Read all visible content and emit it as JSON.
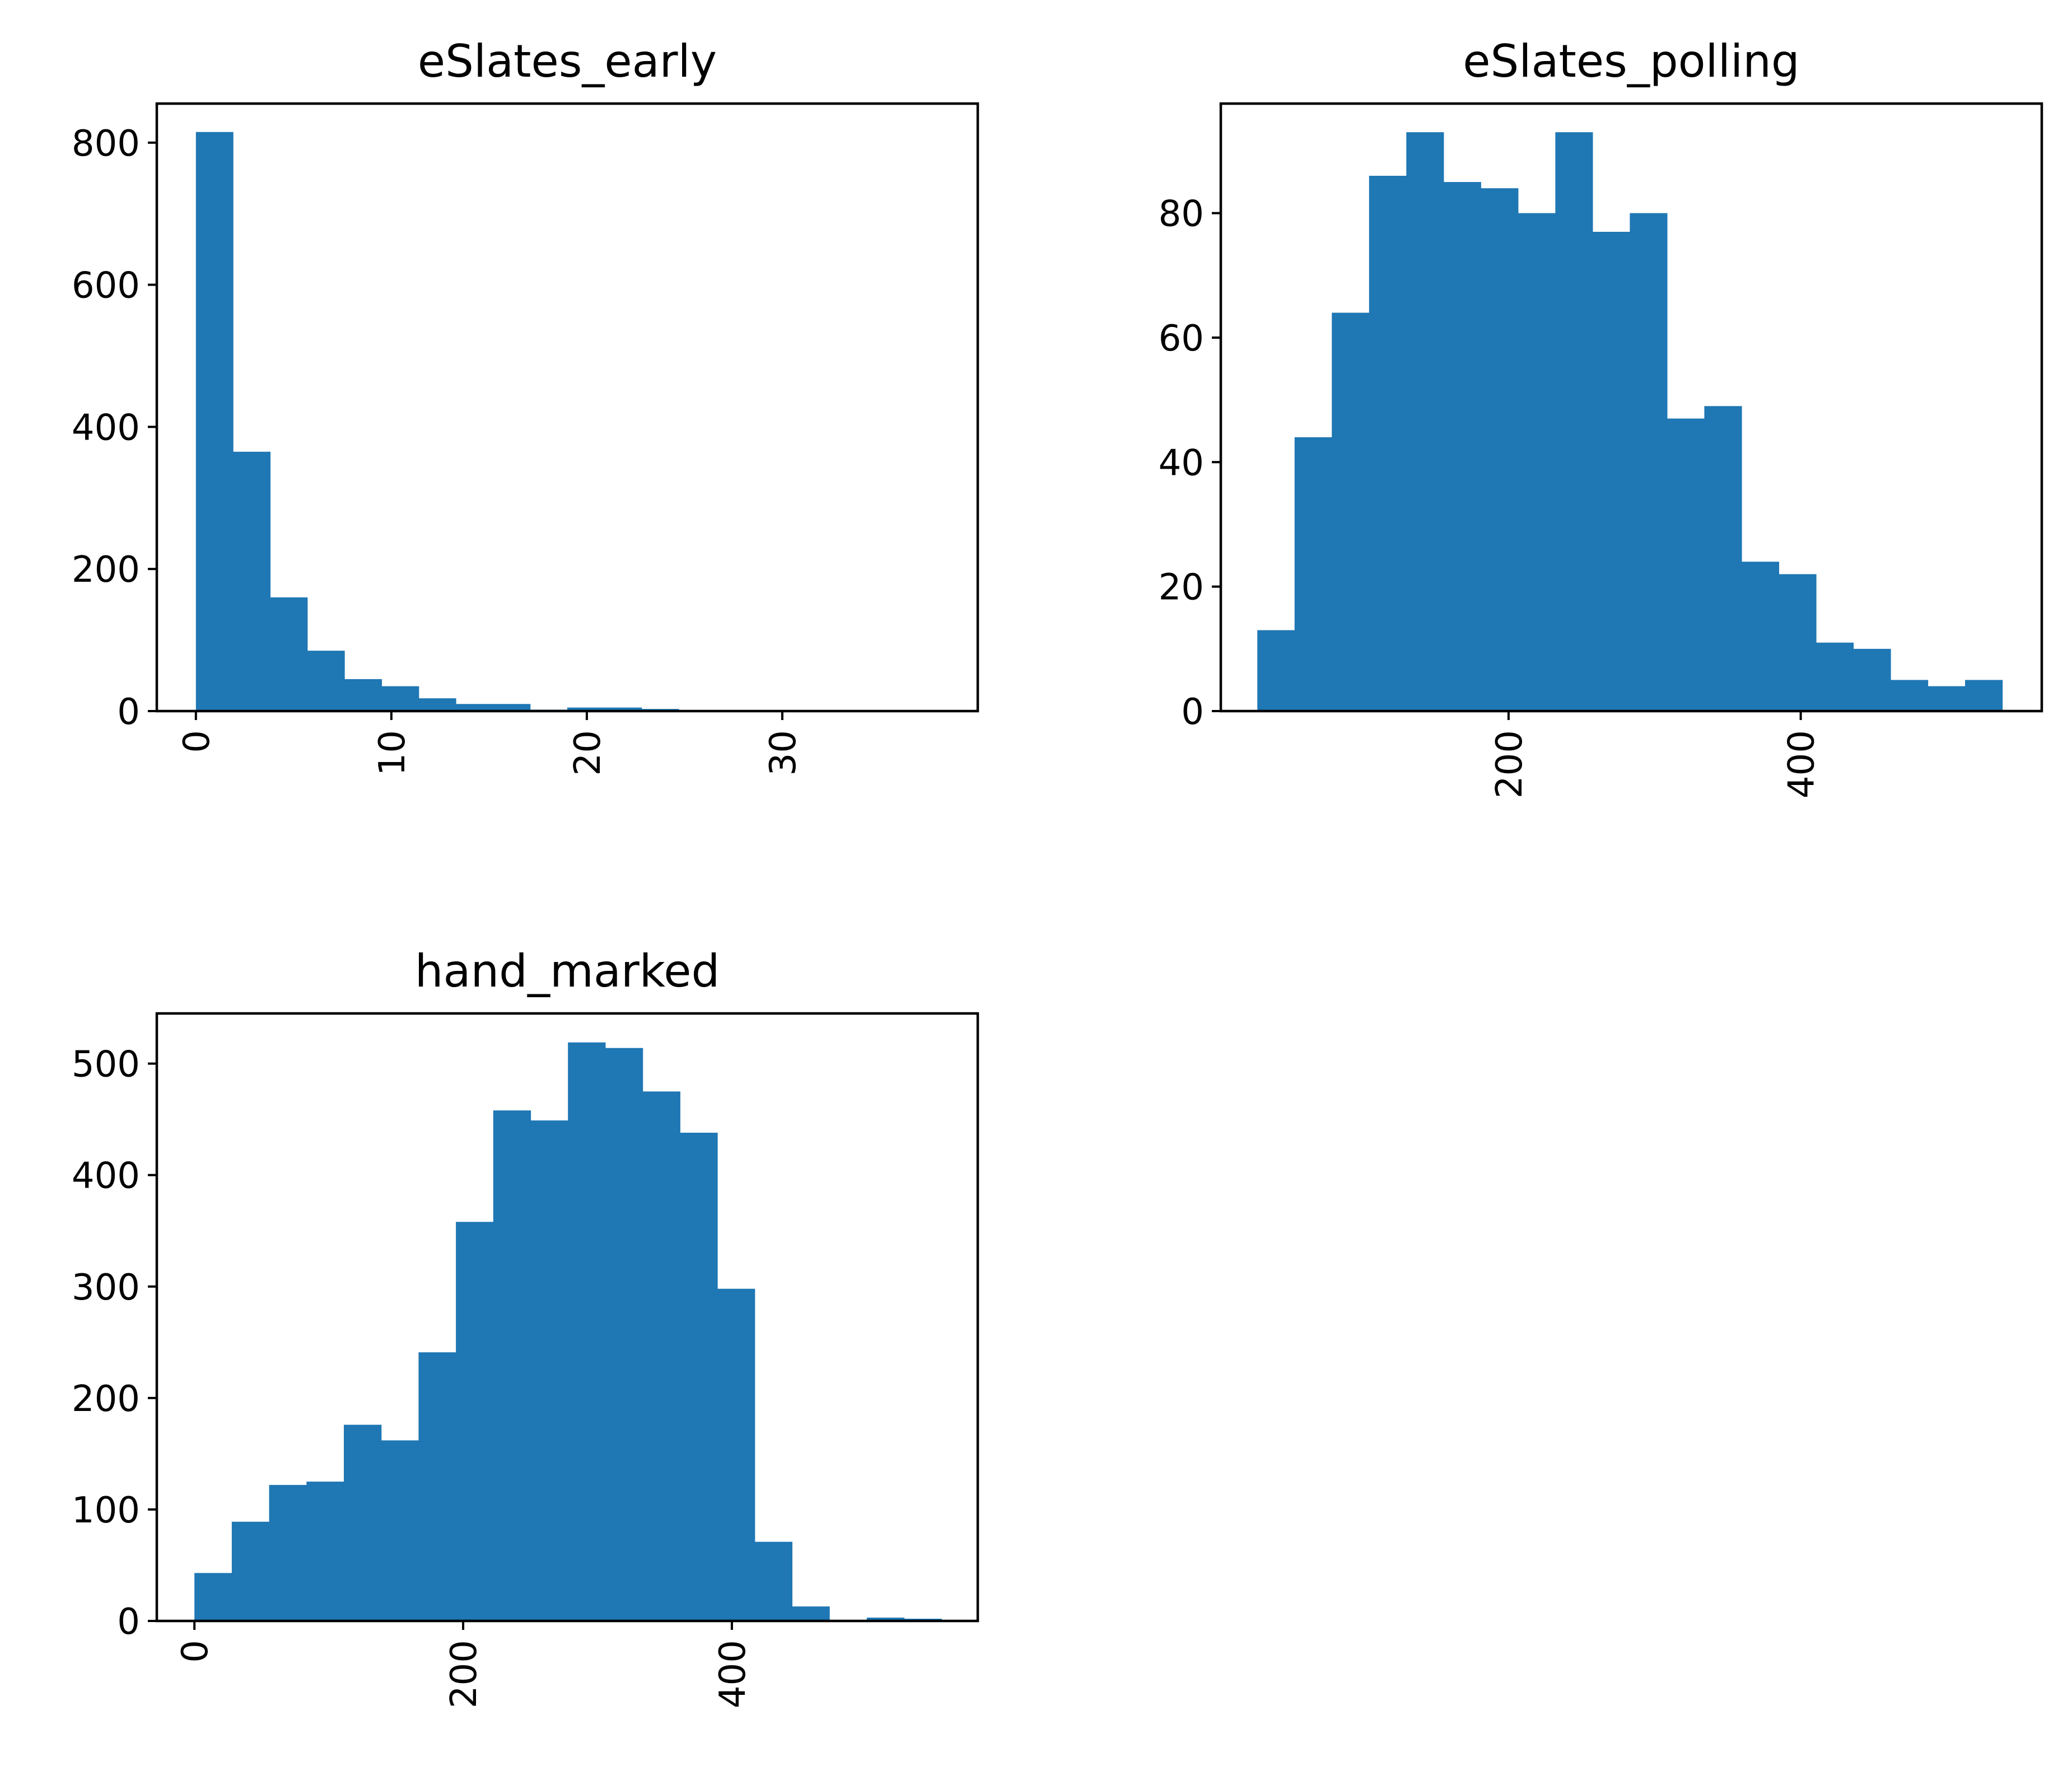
{
  "chart_data": [
    {
      "type": "histogram",
      "title": "eSlates_early",
      "xlabel": "",
      "ylabel": "",
      "xlim": [
        -2,
        40
      ],
      "ylim": [
        0,
        855
      ],
      "grid": false,
      "bar_color": "#1f77b4",
      "bins": [
        {
          "x0": 0,
          "x1": 1.9,
          "count": 815
        },
        {
          "x0": 1.9,
          "x1": 3.8,
          "count": 365
        },
        {
          "x0": 3.8,
          "x1": 5.7,
          "count": 160
        },
        {
          "x0": 5.7,
          "x1": 7.6,
          "count": 85
        },
        {
          "x0": 7.6,
          "x1": 9.5,
          "count": 45
        },
        {
          "x0": 9.5,
          "x1": 11.4,
          "count": 35
        },
        {
          "x0": 11.4,
          "x1": 13.3,
          "count": 18
        },
        {
          "x0": 13.3,
          "x1": 15.2,
          "count": 10
        },
        {
          "x0": 15.2,
          "x1": 17.1,
          "count": 10
        },
        {
          "x0": 17.1,
          "x1": 19.0,
          "count": 2
        },
        {
          "x0": 19.0,
          "x1": 20.9,
          "count": 5
        },
        {
          "x0": 20.9,
          "x1": 22.8,
          "count": 5
        },
        {
          "x0": 22.8,
          "x1": 24.7,
          "count": 3
        },
        {
          "x0": 24.7,
          "x1": 26.6,
          "count": 1
        },
        {
          "x0": 26.6,
          "x1": 28.5,
          "count": 1
        },
        {
          "x0": 28.5,
          "x1": 30.4,
          "count": 0
        },
        {
          "x0": 30.4,
          "x1": 32.3,
          "count": 0
        },
        {
          "x0": 32.3,
          "x1": 34.2,
          "count": 0
        },
        {
          "x0": 34.2,
          "x1": 36.1,
          "count": 0
        },
        {
          "x0": 36.1,
          "x1": 38.0,
          "count": 1
        }
      ],
      "xticks": [
        0,
        10,
        20,
        30
      ],
      "xtick_labels": [
        "0",
        "10",
        "20",
        "30"
      ],
      "yticks": [
        0,
        200,
        400,
        600,
        800
      ],
      "ytick_labels": [
        "0",
        "200",
        "400",
        "600",
        "800"
      ]
    },
    {
      "type": "histogram",
      "title": "eSlates_polling",
      "xlabel": "",
      "ylabel": "",
      "xlim": [
        3,
        565
      ],
      "ylim": [
        0,
        97.6
      ],
      "grid": false,
      "bar_color": "#1f77b4",
      "bins": [
        {
          "x0": 28,
          "x1": 53.5,
          "count": 13
        },
        {
          "x0": 53.5,
          "x1": 79,
          "count": 44
        },
        {
          "x0": 79,
          "x1": 104.5,
          "count": 64
        },
        {
          "x0": 104.5,
          "x1": 130,
          "count": 86
        },
        {
          "x0": 130,
          "x1": 155.5,
          "count": 93
        },
        {
          "x0": 155.5,
          "x1": 181,
          "count": 85
        },
        {
          "x0": 181,
          "x1": 206.5,
          "count": 84
        },
        {
          "x0": 206.5,
          "x1": 232,
          "count": 80
        },
        {
          "x0": 232,
          "x1": 257.5,
          "count": 93
        },
        {
          "x0": 257.5,
          "x1": 283,
          "count": 77
        },
        {
          "x0": 283,
          "x1": 308.5,
          "count": 80
        },
        {
          "x0": 308.5,
          "x1": 334,
          "count": 47
        },
        {
          "x0": 334,
          "x1": 359.5,
          "count": 49
        },
        {
          "x0": 359.5,
          "x1": 385,
          "count": 24
        },
        {
          "x0": 385,
          "x1": 410.5,
          "count": 22
        },
        {
          "x0": 410.5,
          "x1": 436,
          "count": 11
        },
        {
          "x0": 436,
          "x1": 461.5,
          "count": 10
        },
        {
          "x0": 461.5,
          "x1": 487,
          "count": 5
        },
        {
          "x0": 487,
          "x1": 512.5,
          "count": 4
        },
        {
          "x0": 512.5,
          "x1": 538,
          "count": 5
        }
      ],
      "xticks": [
        200,
        400
      ],
      "xtick_labels": [
        "200",
        "400"
      ],
      "yticks": [
        0,
        20,
        40,
        60,
        80
      ],
      "ytick_labels": [
        "0",
        "20",
        "40",
        "60",
        "80"
      ]
    },
    {
      "type": "histogram",
      "title": "hand_marked",
      "xlabel": "",
      "ylabel": "",
      "xlim": [
        -28,
        583
      ],
      "ylim": [
        0,
        545
      ],
      "grid": false,
      "bar_color": "#1f77b4",
      "bins": [
        {
          "x0": 0,
          "x1": 27.8,
          "count": 43
        },
        {
          "x0": 27.8,
          "x1": 55.6,
          "count": 89
        },
        {
          "x0": 55.6,
          "x1": 83.4,
          "count": 122
        },
        {
          "x0": 83.4,
          "x1": 111.2,
          "count": 125
        },
        {
          "x0": 111.2,
          "x1": 139,
          "count": 176
        },
        {
          "x0": 139,
          "x1": 166.8,
          "count": 162
        },
        {
          "x0": 166.8,
          "x1": 194.6,
          "count": 241
        },
        {
          "x0": 194.6,
          "x1": 222.4,
          "count": 358
        },
        {
          "x0": 222.4,
          "x1": 250.2,
          "count": 458
        },
        {
          "x0": 250.2,
          "x1": 278,
          "count": 449
        },
        {
          "x0": 278,
          "x1": 305.8,
          "count": 519
        },
        {
          "x0": 305.8,
          "x1": 333.6,
          "count": 514
        },
        {
          "x0": 333.6,
          "x1": 361.4,
          "count": 475
        },
        {
          "x0": 361.4,
          "x1": 389.2,
          "count": 438
        },
        {
          "x0": 389.2,
          "x1": 417,
          "count": 298
        },
        {
          "x0": 417,
          "x1": 444.8,
          "count": 71
        },
        {
          "x0": 444.8,
          "x1": 472.6,
          "count": 13
        },
        {
          "x0": 472.6,
          "x1": 500.4,
          "count": 1
        },
        {
          "x0": 500.4,
          "x1": 528.2,
          "count": 3
        },
        {
          "x0": 528.2,
          "x1": 556,
          "count": 2
        }
      ],
      "xticks": [
        0,
        200,
        400
      ],
      "xtick_labels": [
        "0",
        "200",
        "400"
      ],
      "yticks": [
        0,
        100,
        200,
        300,
        400,
        500
      ],
      "ytick_labels": [
        "0",
        "100",
        "200",
        "300",
        "400",
        "500"
      ]
    }
  ]
}
